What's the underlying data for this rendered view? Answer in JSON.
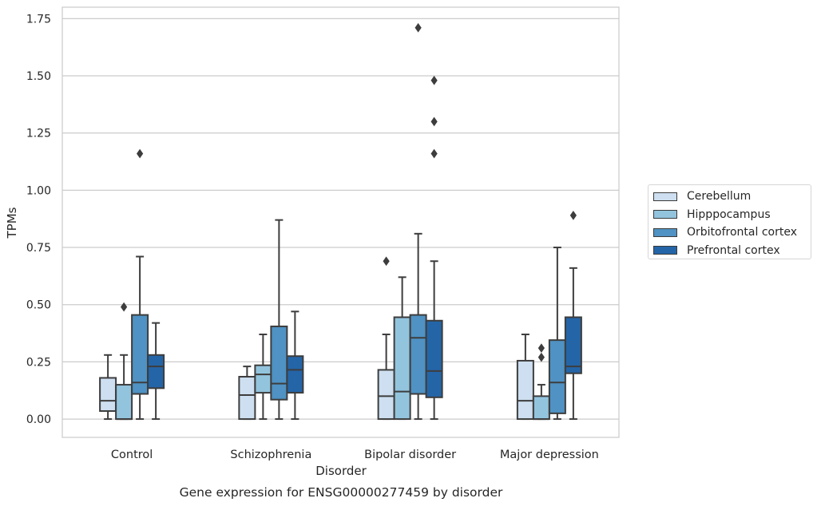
{
  "chart_data": {
    "type": "box",
    "title": "",
    "caption": "Gene expression for ENSG00000277459 by disorder",
    "xlabel": "Disorder",
    "ylabel": "TPMs",
    "ylim": [
      -0.08,
      1.8
    ],
    "yticks": [
      "0.00",
      "0.25",
      "0.50",
      "0.75",
      "1.00",
      "1.25",
      "1.50",
      "1.75"
    ],
    "ytick_values": [
      0,
      0.25,
      0.5,
      0.75,
      1.0,
      1.25,
      1.5,
      1.75
    ],
    "grid": "horizontal",
    "legend_position": "outside-right",
    "categories": [
      "Control",
      "Schizophrenia",
      "Bipolar disorder",
      "Major depression"
    ],
    "series": [
      {
        "name": "Cerebellum",
        "color": "#cddff0",
        "boxes": [
          {
            "whislo": 0.0,
            "q1": 0.035,
            "med": 0.08,
            "q3": 0.18,
            "whishi": 0.28,
            "fliers": []
          },
          {
            "whislo": 0.0,
            "q1": 0.0,
            "med": 0.105,
            "q3": 0.185,
            "whishi": 0.23,
            "fliers": []
          },
          {
            "whislo": 0.0,
            "q1": 0.0,
            "med": 0.1,
            "q3": 0.215,
            "whishi": 0.37,
            "fliers": [
              0.69
            ]
          },
          {
            "whislo": 0.0,
            "q1": 0.0,
            "med": 0.08,
            "q3": 0.255,
            "whishi": 0.37,
            "fliers": []
          }
        ]
      },
      {
        "name": "Hipppocampus",
        "color": "#93c4de",
        "boxes": [
          {
            "whislo": 0.0,
            "q1": 0.0,
            "med": 0.0,
            "q3": 0.15,
            "whishi": 0.28,
            "fliers": [
              0.49
            ]
          },
          {
            "whislo": 0.0,
            "q1": 0.115,
            "med": 0.195,
            "q3": 0.235,
            "whishi": 0.37,
            "fliers": []
          },
          {
            "whislo": 0.0,
            "q1": 0.0,
            "med": 0.12,
            "q3": 0.445,
            "whishi": 0.62,
            "fliers": []
          },
          {
            "whislo": 0.0,
            "q1": 0.0,
            "med": 0.0,
            "q3": 0.1,
            "whishi": 0.15,
            "fliers": [
              0.27,
              0.31
            ]
          }
        ]
      },
      {
        "name": "Orbitofrontal cortex",
        "color": "#4f92c3",
        "boxes": [
          {
            "whislo": 0.0,
            "q1": 0.11,
            "med": 0.16,
            "q3": 0.455,
            "whishi": 0.71,
            "fliers": [
              1.16
            ]
          },
          {
            "whislo": 0.0,
            "q1": 0.085,
            "med": 0.155,
            "q3": 0.405,
            "whishi": 0.87,
            "fliers": []
          },
          {
            "whislo": 0.0,
            "q1": 0.11,
            "med": 0.355,
            "q3": 0.455,
            "whishi": 0.81,
            "fliers": [
              1.71
            ]
          },
          {
            "whislo": 0.0,
            "q1": 0.025,
            "med": 0.16,
            "q3": 0.345,
            "whishi": 0.75,
            "fliers": []
          }
        ]
      },
      {
        "name": "Prefrontal cortex",
        "color": "#2465a8",
        "boxes": [
          {
            "whislo": 0.0,
            "q1": 0.135,
            "med": 0.23,
            "q3": 0.28,
            "whishi": 0.42,
            "fliers": []
          },
          {
            "whislo": 0.0,
            "q1": 0.115,
            "med": 0.215,
            "q3": 0.275,
            "whishi": 0.47,
            "fliers": []
          },
          {
            "whislo": 0.0,
            "q1": 0.095,
            "med": 0.21,
            "q3": 0.43,
            "whishi": 0.69,
            "fliers": [
              1.16,
              1.3,
              1.48
            ]
          },
          {
            "whislo": 0.0,
            "q1": 0.2,
            "med": 0.23,
            "q3": 0.445,
            "whishi": 0.66,
            "fliers": [
              0.89
            ]
          }
        ]
      }
    ]
  }
}
